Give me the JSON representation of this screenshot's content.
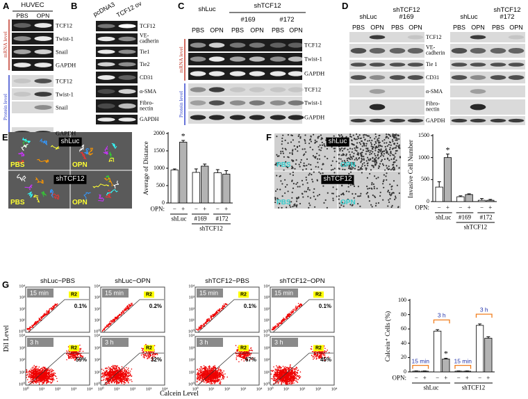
{
  "panels": {
    "A": {
      "letter": "A",
      "group": "HUVEC",
      "lanes": [
        "PBS",
        "OPN"
      ],
      "section_labels": [
        "mRNA level",
        "Protein level"
      ],
      "rows": [
        "TCF12",
        "Twist-1",
        "Snail",
        "GAPDH",
        "TCF12",
        "Twist-1",
        "Snail",
        "GAPDH"
      ]
    },
    "B": {
      "letter": "B",
      "lanes": [
        "pcDNA3",
        "TCF12 ov"
      ],
      "rows": [
        "TCF12",
        "VE-cadherin",
        "Tie1",
        "Tie2",
        "CD31",
        "α-SMA",
        "Fibro-nectin",
        "GAPDH"
      ]
    },
    "C": {
      "letter": "C",
      "groups": [
        "shLuc",
        "shTCF12",
        "#169",
        "#172"
      ],
      "lanes": [
        "PBS",
        "OPN"
      ],
      "section_labels": [
        "mRNA level",
        "Protein level"
      ],
      "rows": [
        "TCF12",
        "Twist-1",
        "GAPDH",
        "TCF12",
        "Twist-1",
        "GAPDH"
      ]
    },
    "D": {
      "letter": "D",
      "groups": [
        "shLuc",
        "shTCF12 #169",
        "shLuc",
        "shTCF12 #172"
      ],
      "lanes": [
        "PBS",
        "OPN"
      ],
      "rows": [
        "TCF12",
        "VE-cadherin",
        "Tie 1",
        "CD31",
        "α-SMA",
        "Fibro-nectin",
        "GAPDH"
      ]
    },
    "E": {
      "letter": "E",
      "rows": [
        "shLuc",
        "shTCF12"
      ],
      "columns": [
        "PBS",
        "OPN"
      ]
    },
    "F": {
      "letter": "F",
      "rows": [
        "shLuc",
        "shTCF12"
      ],
      "columns": [
        "PBS",
        "OPN"
      ]
    },
    "G": {
      "letter": "G"
    }
  },
  "flow": {
    "titles": [
      "shLuc−PBS",
      "shLuc−OPN",
      "shTCF12−PBS",
      "shTCF12−OPN"
    ],
    "times": [
      "15 min",
      "3 h"
    ],
    "gate": "R2",
    "percent_15min": [
      "0.1%",
      "0.2%",
      "0.1%",
      "0.1%"
    ],
    "percent_3h": [
      "59%",
      "32%",
      "67%",
      "45%"
    ],
    "ticks": [
      "10⁰",
      "10¹",
      "10²",
      "10³",
      "10⁴"
    ],
    "ylabel": "DiI Level",
    "xlabel": "Calcein Level"
  },
  "chart_data": [
    {
      "type": "bar",
      "ylabel": "Average of Distance",
      "ylim": [
        0,
        2000
      ],
      "yticks": [
        0,
        500,
        1000,
        1500,
        2000
      ],
      "treatment_label": "OPN:",
      "categories": [
        "−",
        "+",
        "−",
        "+",
        "−",
        "+"
      ],
      "values": [
        950,
        1750,
        880,
        1060,
        870,
        830
      ],
      "errors": [
        30,
        50,
        100,
        60,
        90,
        100
      ],
      "value_annotations": [
        null,
        "*",
        null,
        null,
        null,
        null
      ],
      "colors": [
        "#ffffff",
        "#b3b3b3"
      ],
      "groups": [
        "shLuc",
        "#169",
        "#172"
      ],
      "supergroup": "shTCF12"
    },
    {
      "type": "bar",
      "ylabel": "Invasive Cell Number",
      "ylim": [
        0,
        1500
      ],
      "yticks": [
        0,
        500,
        1000,
        1500
      ],
      "treatment_label": "OPN:",
      "categories": [
        "−",
        "+",
        "−",
        "+",
        "−",
        "+"
      ],
      "values": [
        330,
        1000,
        110,
        160,
        30,
        30
      ],
      "errors": [
        120,
        80,
        20,
        15,
        40,
        20
      ],
      "value_annotations": [
        null,
        "*",
        null,
        null,
        null,
        null
      ],
      "colors": [
        "#ffffff",
        "#b3b3b3"
      ],
      "groups": [
        "shLuc",
        "#169",
        "#172"
      ],
      "supergroup": "shTCF12"
    },
    {
      "type": "bar",
      "ylabel": "Calcein⁺ Cells (%)",
      "ylim": [
        0,
        100
      ],
      "yticks": [
        0,
        20,
        40,
        60,
        80,
        100
      ],
      "treatment_label": "OPN:",
      "categories": [
        "−",
        "+",
        "−",
        "+",
        "−",
        "+",
        "−",
        "+"
      ],
      "values": [
        1,
        1,
        57,
        18,
        1,
        1,
        65,
        47
      ],
      "errors": [
        0.3,
        0.3,
        2,
        1,
        0.3,
        0.3,
        2,
        2
      ],
      "value_annotations": [
        null,
        null,
        null,
        "*",
        null,
        null,
        null,
        null
      ],
      "colors": [
        "#ffffff",
        "#b3b3b3"
      ],
      "groups": [
        "shLuc",
        "shTCF12"
      ],
      "time_labels": [
        "15 min",
        "3 h",
        "15 min",
        "3 h"
      ]
    }
  ]
}
